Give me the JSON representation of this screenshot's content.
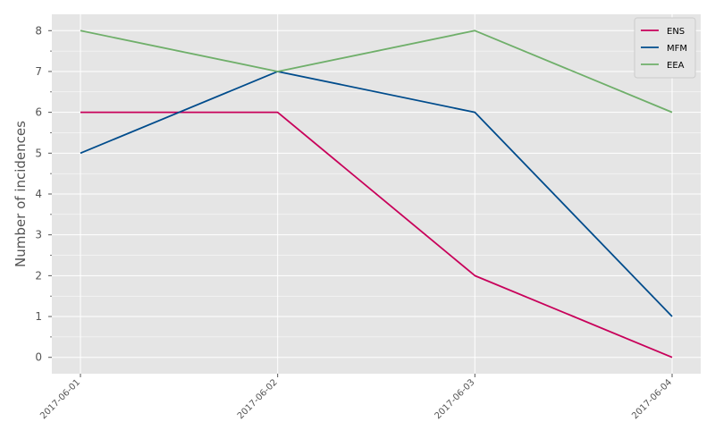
{
  "chart_data": {
    "type": "line",
    "title": "",
    "xlabel": "",
    "ylabel": "Number of incidences",
    "x": [
      "2017-06-01",
      "2017-06-02",
      "2017-06-03",
      "2017-06-04"
    ],
    "ylim": [
      -0.4,
      8.4
    ],
    "yticks": [
      0,
      1,
      2,
      3,
      4,
      5,
      6,
      7,
      8
    ],
    "grid": true,
    "legend_position": "top-right",
    "background": "#e5e5e5",
    "series": [
      {
        "name": "ENS",
        "color": "#c8005a",
        "values": [
          6,
          6,
          2,
          0
        ]
      },
      {
        "name": "MFM",
        "color": "#004c8c",
        "values": [
          5,
          7,
          6,
          1
        ]
      },
      {
        "name": "EEA",
        "color": "#6faf6a",
        "values": [
          8,
          7,
          8,
          6
        ]
      }
    ]
  }
}
